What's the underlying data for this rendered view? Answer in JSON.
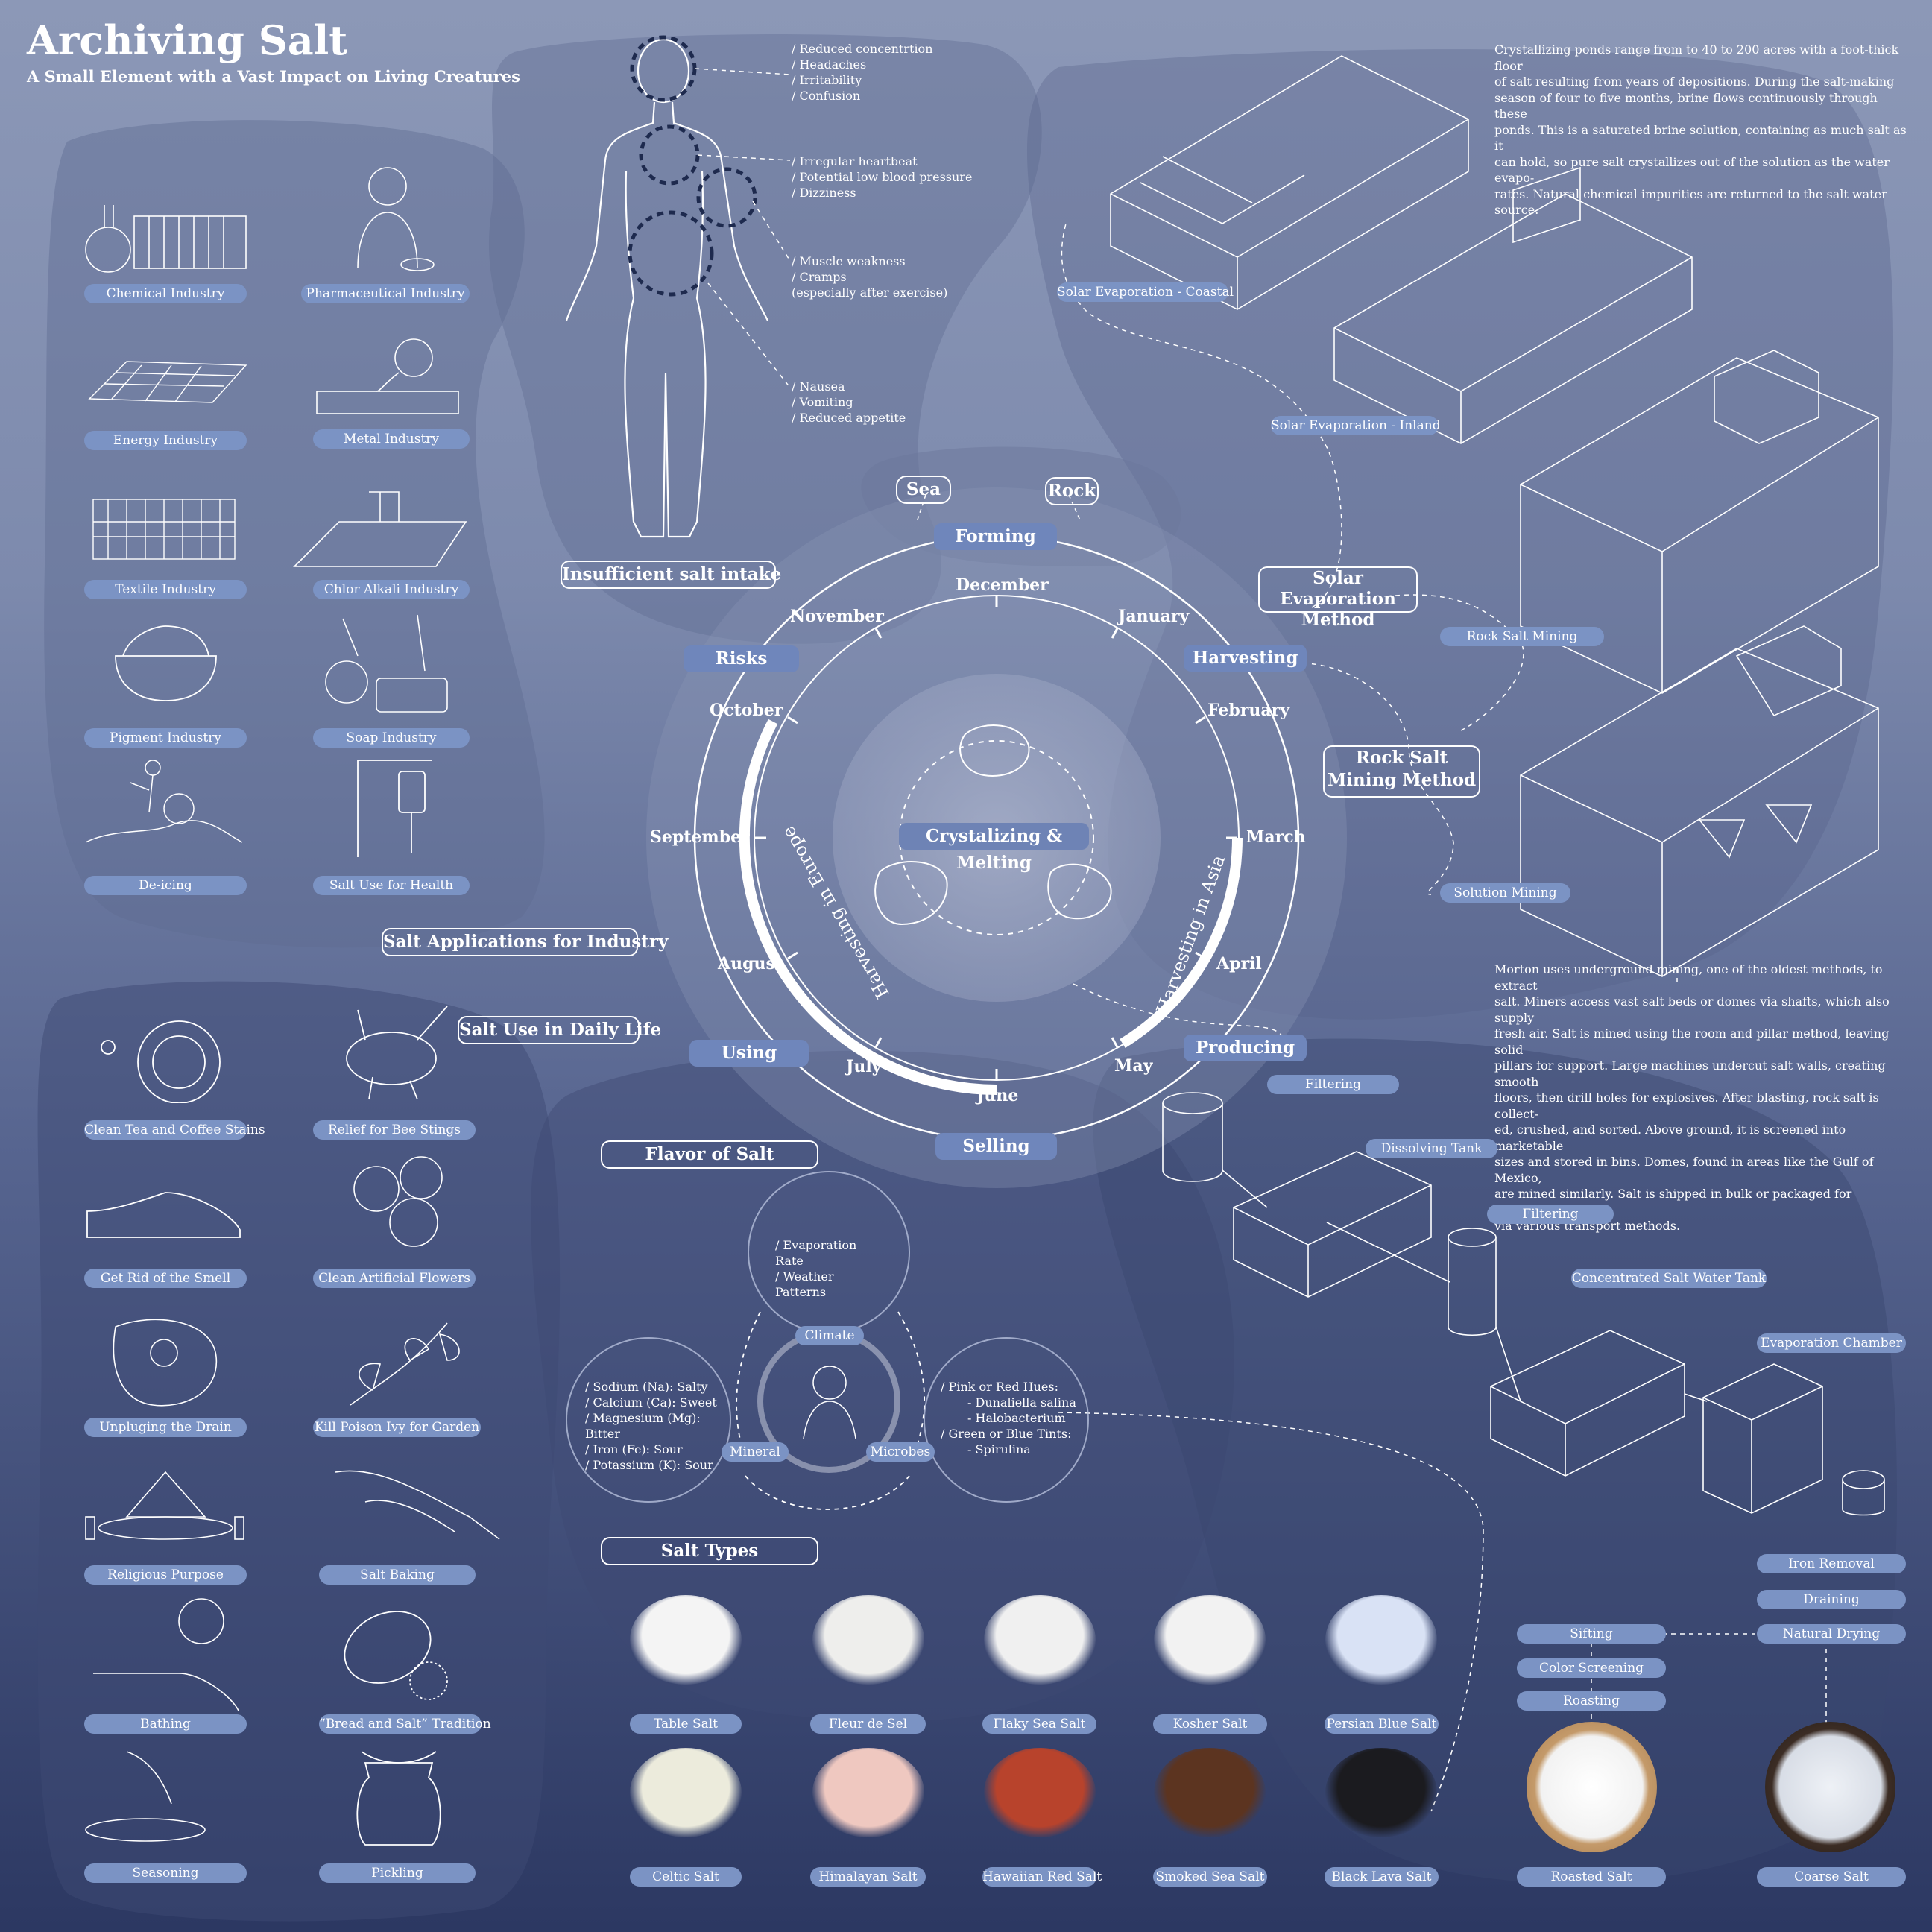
{
  "title": "Archiving Salt",
  "subtitle": "A Small Element with a Vast Impact on Living Creatures",
  "industry": {
    "heading": "Salt Applications for Industry",
    "items": [
      "Chemical Industry",
      "Pharmaceutical Industry",
      "Energy Industry",
      "Metal Industry",
      "Textile Industry",
      "Chlor Alkali Industry",
      "Pigment Industry",
      "Soap Industry",
      "De-icing",
      "Salt Use for Health"
    ]
  },
  "daily": {
    "heading": "Salt Use in Daily Life",
    "items": [
      "Clean Tea and Coffee Stains",
      "Relief for Bee Stings",
      "Get Rid of the Smell",
      "Clean Artificial Flowers",
      "Unpluging the Drain",
      "Kill Poison Ivy for Garden",
      "Religious Purpose",
      "Salt Baking",
      "Bathing",
      "“Bread and Salt” Tradition",
      "Seasoning",
      "Pickling"
    ]
  },
  "intake": {
    "heading": "Insufficient salt intake",
    "head": [
      "/ Reduced concentrtion",
      "/ Headaches",
      "/ Irritability",
      "/ Confusion"
    ],
    "heart": [
      "/ Irregular heartbeat",
      "/ Potential low blood pressure",
      "/ Dizziness"
    ],
    "muscle": [
      "/ Muscle weakness",
      "/ Cramps",
      "(especially after exercise)"
    ],
    "stomach": [
      "/ Nausea",
      "/ Vomiting",
      "/ Reduced appetite"
    ]
  },
  "cycle": {
    "center": "Crystalizing & Melting",
    "sources": [
      "Sea",
      "Rock"
    ],
    "stages": {
      "forming": "Forming",
      "harvesting": "Harvesting",
      "producing": "Producing",
      "selling": "Selling",
      "using": "Using",
      "risks": "Risks"
    },
    "months": [
      "December",
      "January",
      "February",
      "March",
      "April",
      "May",
      "June",
      "July",
      "August",
      "September",
      "October",
      "November"
    ],
    "arc_asia": "Harvesting in Asia",
    "arc_europe": "Harvesting in Europe"
  },
  "methods": {
    "solar": "Solar Evaporation Method",
    "rock": "Rock Salt Mining Method",
    "labels": [
      "Solar Evaporation - Coastal",
      "Solar Evaporation - Inland",
      "Rock Salt Mining",
      "Solution Mining"
    ],
    "solar_text": [
      "Crystallizing ponds range from to 40 to 200 acres with a foot-thick floor",
      "of salt resulting from years of depositions. During the salt-making",
      "season of four to five months, brine flows continuously through these",
      "ponds. This is a saturated brine solution, containing as much salt as it",
      "can hold, so pure salt crystallizes out of the solution as the water evapo-",
      "rates. Natural chemical impurities are returned to the salt water source."
    ],
    "rock_text": [
      "Morton uses underground mining, one of the oldest methods, to extract",
      "salt. Miners access vast salt beds or domes via shafts, which also supply",
      "fresh air. Salt is mined using the room and pillar method, leaving solid",
      "pillars for support. Large machines undercut salt walls, creating smooth",
      "floors, then drill holes for explosives. After blasting, rock salt is collect-",
      "ed, crushed, and sorted. Above ground, it is screened into marketable",
      "sizes and stored in bins. Domes, found in areas like the Gulf of Mexico,",
      "are mined similarly. Salt is shipped in bulk or packaged for distribution",
      "via various transport methods."
    ]
  },
  "process": {
    "steps": [
      "Filtering",
      "Dissolving Tank",
      "Filtering",
      "Concentrated Salt Water Tank",
      "Evaporation Chamber",
      "Iron Removal",
      "Draining",
      "Natural Drying",
      "Sifting",
      "Color Screening",
      "Roasting"
    ],
    "products": [
      "Roasted Salt",
      "Coarse Salt"
    ]
  },
  "flavor": {
    "heading": "Flavor of Salt",
    "climate_label": "Climate",
    "climate": [
      "/ Evaporation Rate",
      "/ Weather Patterns"
    ],
    "mineral_label": "Mineral",
    "mineral": [
      "/ Sodium (Na): Salty",
      "/ Calcium (Ca): Sweet",
      "/ Magnesium (Mg): Bitter",
      "/ Iron (Fe): Sour",
      "/ Potassium (K): Sour"
    ],
    "microbes_label": "Microbes",
    "microbes": [
      "/ Pink or Red Hues:",
      "- Dunaliella salina",
      "- Halobacterium",
      "/ Green or Blue Tints:",
      "- Spirulina"
    ]
  },
  "types": {
    "heading": "Salt Types",
    "items": [
      "Table Salt",
      "Fleur de Sel",
      "Flaky Sea Salt",
      "Kosher Salt",
      "Persian Blue Salt",
      "Celtic Salt",
      "Himalayan Salt",
      "Hawaiian Red Salt",
      "Smoked Sea Salt",
      "Black Lava Salt"
    ],
    "colors": [
      "#f4f4f4",
      "#eeeeec",
      "#f0f0f0",
      "#f2f2f2",
      "#d9e2f5",
      "#ecebdc",
      "#efc8c0",
      "#b8432c",
      "#5c3420",
      "#1b1b1f"
    ]
  }
}
